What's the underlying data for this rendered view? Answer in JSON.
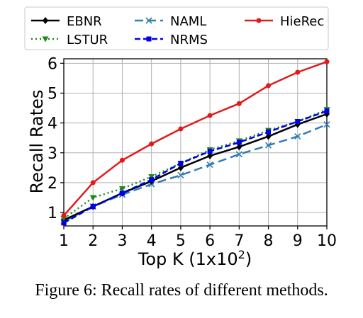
{
  "chart_data": {
    "type": "line",
    "xlabel_prefix": "Top K (1x10",
    "xlabel_exponent": "2",
    "xlabel_suffix": ")",
    "ylabel": "Recall Rates",
    "x": [
      1,
      2,
      3,
      4,
      5,
      6,
      7,
      8,
      9,
      10
    ],
    "xlim": [
      1,
      10
    ],
    "ylim": [
      0.55,
      6.15
    ],
    "xticks": [
      1,
      2,
      3,
      4,
      5,
      6,
      7,
      8,
      9,
      10
    ],
    "yticks": [
      1,
      2,
      3,
      4,
      5,
      6
    ],
    "grid": true,
    "legend_placement": "top",
    "series": [
      {
        "name": "EBNR",
        "color": "#000000",
        "marker": "diamond",
        "dash": "solid",
        "values": [
          0.75,
          1.2,
          1.65,
          2.05,
          2.5,
          2.9,
          3.2,
          3.55,
          3.95,
          4.3
        ]
      },
      {
        "name": "NAML",
        "color": "#2f7db3",
        "marker": "x",
        "dash": "dashed",
        "values": [
          0.7,
          1.2,
          1.6,
          1.95,
          2.25,
          2.6,
          2.95,
          3.25,
          3.55,
          3.95
        ]
      },
      {
        "name": "HieRec",
        "color": "#e31a1c",
        "marker": "circle",
        "dash": "solid",
        "values": [
          0.9,
          2.0,
          2.75,
          3.3,
          3.8,
          4.25,
          4.65,
          5.25,
          5.7,
          6.05
        ]
      },
      {
        "name": "LSTUR",
        "color": "#1a8a1a",
        "marker": "triangle-down",
        "dash": "dotted",
        "values": [
          0.8,
          1.5,
          1.8,
          2.2,
          2.65,
          3.1,
          3.4,
          3.75,
          4.05,
          4.45
        ]
      },
      {
        "name": "NRMS",
        "color": "#0000e6",
        "marker": "square",
        "dash": "dashdot",
        "values": [
          0.65,
          1.2,
          1.65,
          2.1,
          2.65,
          3.05,
          3.35,
          3.7,
          4.05,
          4.4
        ]
      }
    ]
  },
  "caption": "Figure 6: Recall rates of different methods."
}
